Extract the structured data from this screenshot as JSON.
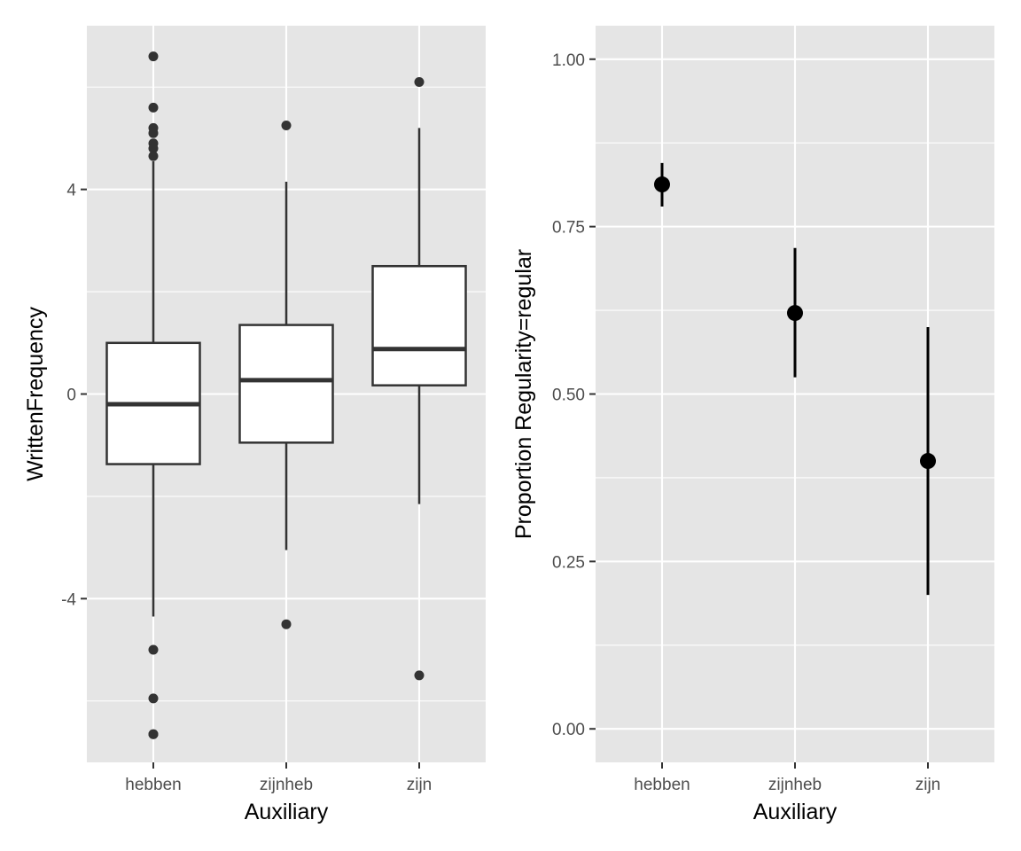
{
  "chart_data": [
    {
      "type": "boxplot",
      "xlabel": "Auxiliary",
      "ylabel": "WrittenFrequency",
      "ylim": [
        -7.2,
        7.2
      ],
      "y_ticks": [
        -4,
        0,
        4
      ],
      "y_tick_labels": [
        "-4",
        "0",
        "4"
      ],
      "grid": true,
      "categories": [
        "hebben",
        "zijnheb",
        "zijn"
      ],
      "boxes": [
        {
          "category": "hebben",
          "q1": -1.37,
          "median": -0.2,
          "q3": 1.0,
          "whisker_low": -4.35,
          "whisker_high": 4.55,
          "outliers": [
            6.6,
            5.6,
            5.2,
            5.1,
            4.9,
            4.8,
            4.65,
            -5.0,
            -5.95,
            -6.65,
            -6.65
          ]
        },
        {
          "category": "zijnheb",
          "q1": -0.95,
          "median": 0.27,
          "q3": 1.35,
          "whisker_low": -3.05,
          "whisker_high": 4.15,
          "outliers": [
            5.25,
            -4.5
          ]
        },
        {
          "category": "zijn",
          "q1": 0.17,
          "median": 0.88,
          "q3": 2.5,
          "whisker_low": -2.15,
          "whisker_high": 5.2,
          "outliers": [
            6.1,
            -5.5
          ]
        }
      ]
    },
    {
      "type": "pointrange",
      "xlabel": "Auxiliary",
      "ylabel": "Proportion Regularity=regular",
      "ylim": [
        -0.05,
        1.05
      ],
      "y_ticks": [
        0,
        0.25,
        0.5,
        0.75,
        1
      ],
      "y_tick_labels": [
        "0.00",
        "0.25",
        "0.50",
        "0.75",
        "1.00"
      ],
      "grid": true,
      "categories": [
        "hebben",
        "zijnheb",
        "zijn"
      ],
      "points": [
        {
          "category": "hebben",
          "value": 0.813,
          "lower": 0.78,
          "upper": 0.845
        },
        {
          "category": "zijnheb",
          "value": 0.621,
          "lower": 0.525,
          "upper": 0.718
        },
        {
          "category": "zijn",
          "value": 0.4,
          "lower": 0.2,
          "upper": 0.6
        }
      ]
    }
  ]
}
